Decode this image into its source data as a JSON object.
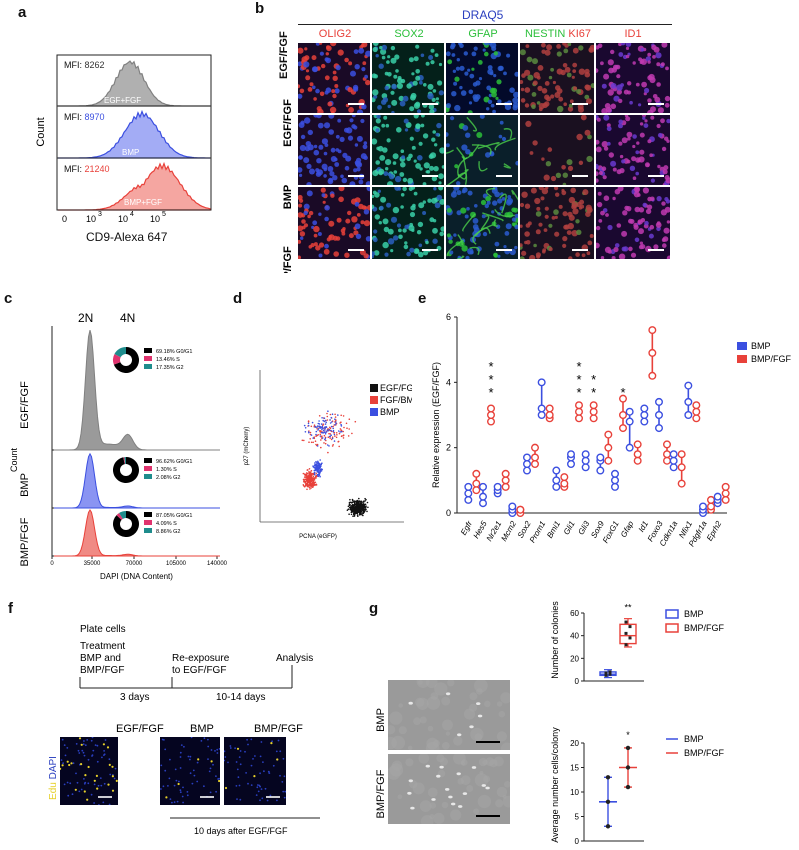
{
  "panels": {
    "a": "a",
    "b": "b",
    "c": "c",
    "d": "d",
    "e": "e",
    "f": "f",
    "g": "g"
  },
  "palette": {
    "gray": "#808080",
    "blue": "#3b4fe0",
    "red": "#e8413a",
    "black": "#000000",
    "teal": "#1e8c8c",
    "pink": "#e0336e"
  },
  "panel_a": {
    "ylabel": "Count",
    "xlabel": "CD9-Alexa 647",
    "xticks": [
      "0",
      "10",
      "3",
      "10",
      "4",
      "10",
      "5"
    ],
    "histograms": [
      {
        "mfi_label": "MFI:",
        "mfi_value": "8262",
        "name": "EGF+FGF",
        "color": "#808080",
        "fill": "#b0b0b0"
      },
      {
        "mfi_label": "MFI:",
        "mfi_value": "8970",
        "name": "BMP",
        "color": "#3b4fe0",
        "fill": "#a3acf5"
      },
      {
        "mfi_label": "MFI:",
        "mfi_value": "21240",
        "name": "BMP+FGF",
        "color": "#e8413a",
        "fill": "#f5a6a1"
      }
    ]
  },
  "panel_b": {
    "header": "DRAQ5",
    "columns": [
      {
        "label": "OLIG2",
        "color": "#e8413a"
      },
      {
        "label": "SOX2",
        "color": "#2bbf3a"
      },
      {
        "label": "GFAP",
        "color": "#2bbf3a"
      },
      {
        "label": "NESTIN",
        "color": "#2bbf3a",
        "label2": "KI67",
        "color2": "#e8413a"
      },
      {
        "label": "ID1",
        "color": "#e8413a"
      }
    ],
    "rows": [
      "EGF/FGF",
      "BMP",
      "BMP/FGF"
    ]
  },
  "panel_c": {
    "ylabel": "Count",
    "xlabel": "DAPI (DNA Content)",
    "ploidy": [
      "2N",
      "4N"
    ],
    "xticks": [
      "0",
      "35000",
      "70000",
      "105000",
      "140000"
    ],
    "rows": [
      {
        "name": "EGF/FGF",
        "color": "#808080",
        "fill": "#9a9a9a",
        "legend": [
          {
            "value": "69.18%",
            "phase": "G0/G1"
          },
          {
            "value": "13.46%",
            "phase": "S"
          },
          {
            "value": "17.35%",
            "phase": "G2"
          }
        ],
        "pie": [
          69.18,
          13.46,
          17.35
        ]
      },
      {
        "name": "BMP",
        "color": "#3b4fe0",
        "fill": "#8a94f2",
        "legend": [
          {
            "value": "96.62%",
            "phase": "G0/G1"
          },
          {
            "value": "1.30%",
            "phase": "S"
          },
          {
            "value": "2.08%",
            "phase": "G2"
          }
        ],
        "pie": [
          96.62,
          1.3,
          2.08
        ]
      },
      {
        "name": "BMP/FGF",
        "color": "#e8413a",
        "fill": "#f08a84",
        "legend": [
          {
            "value": "87.05%",
            "phase": "G0/G1"
          },
          {
            "value": "4.09%",
            "phase": "S"
          },
          {
            "value": "8.86%",
            "phase": "G2"
          }
        ],
        "pie": [
          87.05,
          4.09,
          8.86
        ]
      }
    ]
  },
  "panel_d": {
    "ylabel": "p27 (mCherry)",
    "xlabel": "PCNA (eGFP)",
    "legend": [
      {
        "name": "EGF/FGF",
        "color": "#111111"
      },
      {
        "name": "FGF/BMP",
        "color": "#e8413a"
      },
      {
        "name": "BMP",
        "color": "#3b4fe0"
      }
    ]
  },
  "chart_data": {
    "type": "scatter",
    "ylabel": "Relative expression (EGF/FGF)",
    "ylim": [
      0,
      6
    ],
    "yticks": [
      "0",
      "2",
      "4",
      "6"
    ],
    "categories": [
      "Egfr",
      "Hes5",
      "Nr2e1",
      "Mcm2",
      "Sox2",
      "Prom1",
      "Bmi1",
      "Gli1",
      "Gli3",
      "Sox9",
      "FoxG1",
      "Gfap",
      "Id1",
      "Foxo3",
      "Cdkn1a",
      "Nfix1",
      "Pdgfr1a",
      "Eprh2"
    ],
    "series": [
      {
        "name": "BMP",
        "color": "#3b4fe0",
        "values": [
          [
            0.4,
            0.6,
            0.8
          ],
          [
            0.3,
            0.5,
            0.8
          ],
          [
            0.6,
            0.7,
            0.8
          ],
          [
            0.0,
            0.1,
            0.2
          ],
          [
            1.3,
            1.5,
            1.7
          ],
          [
            3.0,
            3.2,
            4.0
          ],
          [
            0.8,
            1.0,
            1.3
          ],
          [
            1.5,
            1.7,
            1.8
          ],
          [
            1.4,
            1.6,
            1.8
          ],
          [
            1.3,
            1.6,
            1.7
          ],
          [
            0.8,
            1.0,
            1.2
          ],
          [
            2.0,
            2.8,
            3.1
          ],
          [
            2.8,
            3.0,
            3.2
          ],
          [
            2.6,
            3.0,
            3.4
          ],
          [
            1.4,
            1.6,
            1.8
          ],
          [
            3.0,
            3.4,
            3.9
          ],
          [
            0.0,
            0.1,
            0.2
          ],
          [
            0.3,
            0.4,
            0.5
          ]
        ]
      },
      {
        "name": "BMP/FGF",
        "color": "#e8413a",
        "values": [
          [
            0.7,
            0.9,
            1.2
          ],
          [
            2.8,
            3.0,
            3.2
          ],
          [
            0.8,
            1.0,
            1.2
          ],
          [
            0.0,
            0.1,
            0.1
          ],
          [
            1.5,
            1.7,
            2.0
          ],
          [
            2.9,
            3.0,
            3.2
          ],
          [
            0.8,
            0.9,
            1.1
          ],
          [
            2.9,
            3.1,
            3.3
          ],
          [
            2.9,
            3.1,
            3.3
          ],
          [
            1.6,
            2.0,
            2.4
          ],
          [
            2.6,
            3.0,
            3.5
          ],
          [
            1.6,
            1.8,
            2.1
          ],
          [
            4.2,
            4.9,
            5.6
          ],
          [
            1.6,
            1.8,
            2.1
          ],
          [
            0.9,
            1.4,
            1.8
          ],
          [
            2.9,
            3.1,
            3.3
          ],
          [
            0.1,
            0.2,
            0.4
          ],
          [
            0.4,
            0.6,
            0.8
          ]
        ]
      }
    ],
    "stars": [
      {
        "category": "Hes5",
        "count": 3
      },
      {
        "category": "Gli1",
        "count": 3
      },
      {
        "category": "Gli3",
        "count": 2
      },
      {
        "category": "FoxG1",
        "count": 1
      }
    ],
    "legend": [
      {
        "name": "BMP",
        "color": "#3b4fe0"
      },
      {
        "name": "BMP/FGF",
        "color": "#e8413a"
      }
    ]
  },
  "panel_f": {
    "steps": [
      "Plate cells",
      "Treatment",
      "BMP and",
      "BMP/FGF"
    ],
    "reexposure": [
      "Re-exposure",
      "to EGF/FGF"
    ],
    "analysis": "Analysis",
    "dur1": "3 days",
    "dur2": "10-14 days",
    "micro_labels": [
      "EGF/FGF",
      "BMP",
      "BMP/FGF"
    ],
    "stain_edu": "Edu",
    "stain_dapi": "DAPI",
    "caption": "10 days after EGF/FGF"
  },
  "panel_g": {
    "rows": [
      "BMP",
      "BMP/FGF"
    ],
    "colonies": {
      "ylabel": "Number of colonies",
      "yticks": [
        "0",
        "20",
        "40",
        "60"
      ],
      "sig": "**",
      "BMP": {
        "min": 3,
        "q1": 5,
        "median": 6,
        "q3": 8,
        "max": 10,
        "points": [
          5,
          6,
          7,
          8
        ]
      },
      "BMP/FGF": {
        "min": 30,
        "q1": 33,
        "median": 40,
        "q3": 50,
        "max": 55,
        "points": [
          32,
          38,
          42,
          48,
          52
        ]
      }
    },
    "cells": {
      "ylabel": "Average number cells/colony",
      "yticks": [
        "0",
        "5",
        "10",
        "15",
        "20"
      ],
      "sig": "*",
      "BMP": {
        "min": 3,
        "median": 8,
        "max": 13,
        "points": [
          3,
          8,
          13
        ]
      },
      "BMP/FGF": {
        "min": 11,
        "median": 15,
        "max": 19,
        "points": [
          11,
          15,
          19
        ]
      }
    },
    "legend": [
      {
        "name": "BMP",
        "color": "#3b4fe0"
      },
      {
        "name": "BMP/FGF",
        "color": "#e8413a"
      }
    ]
  }
}
